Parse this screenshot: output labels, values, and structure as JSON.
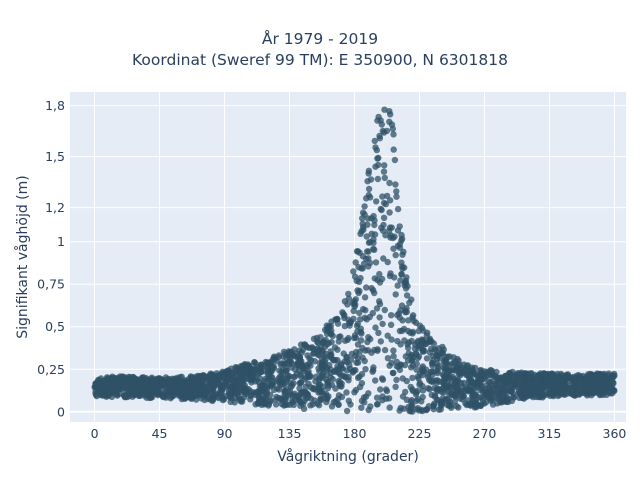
{
  "chart_data": {
    "type": "scatter",
    "title_line1": "År 1979 - 2019",
    "title_line2": "Koordinat (Sweref 99 TM): E 350900, N 6301818",
    "xlabel": "Vågriktning (grader)",
    "ylabel": "Signifikant våghöjd (m)",
    "xlim": [
      -17,
      368
    ],
    "ylim": [
      -0.06,
      1.88
    ],
    "x_ticks": [
      0,
      45,
      90,
      135,
      180,
      225,
      270,
      315,
      360
    ],
    "x_tick_labels": [
      "0",
      "45",
      "90",
      "135",
      "180",
      "225",
      "270",
      "315",
      "360"
    ],
    "y_ticks": [
      0,
      0.25,
      0.5,
      0.75,
      1,
      1.2,
      1.5,
      1.8
    ],
    "y_tick_labels": [
      "0",
      "0,25",
      "0,5",
      "0,75",
      "1",
      "1,2",
      "1,5",
      "1,8"
    ],
    "grid": true,
    "background_color": "#e5ecf6",
    "marker_color": "#2f5167",
    "envelope_upper": [
      [
        0,
        0.2
      ],
      [
        20,
        0.21
      ],
      [
        45,
        0.2
      ],
      [
        70,
        0.21
      ],
      [
        90,
        0.24
      ],
      [
        110,
        0.3
      ],
      [
        130,
        0.35
      ],
      [
        150,
        0.42
      ],
      [
        160,
        0.5
      ],
      [
        170,
        0.6
      ],
      [
        178,
        0.78
      ],
      [
        183,
        1.0
      ],
      [
        188,
        1.3
      ],
      [
        193,
        1.6
      ],
      [
        198,
        1.8
      ],
      [
        201,
        1.84
      ],
      [
        206,
        1.78
      ],
      [
        208,
        1.55
      ],
      [
        211,
        1.25
      ],
      [
        214,
        0.95
      ],
      [
        218,
        0.72
      ],
      [
        222,
        0.56
      ],
      [
        232,
        0.45
      ],
      [
        245,
        0.35
      ],
      [
        262,
        0.26
      ],
      [
        280,
        0.24
      ],
      [
        300,
        0.23
      ],
      [
        330,
        0.22
      ],
      [
        360,
        0.23
      ]
    ],
    "envelope_lower": [
      [
        0,
        0.09
      ],
      [
        45,
        0.08
      ],
      [
        90,
        0.06
      ],
      [
        135,
        0.02
      ],
      [
        180,
        0.0
      ],
      [
        225,
        0.0
      ],
      [
        270,
        0.03
      ],
      [
        315,
        0.09
      ],
      [
        360,
        0.1
      ]
    ]
  }
}
